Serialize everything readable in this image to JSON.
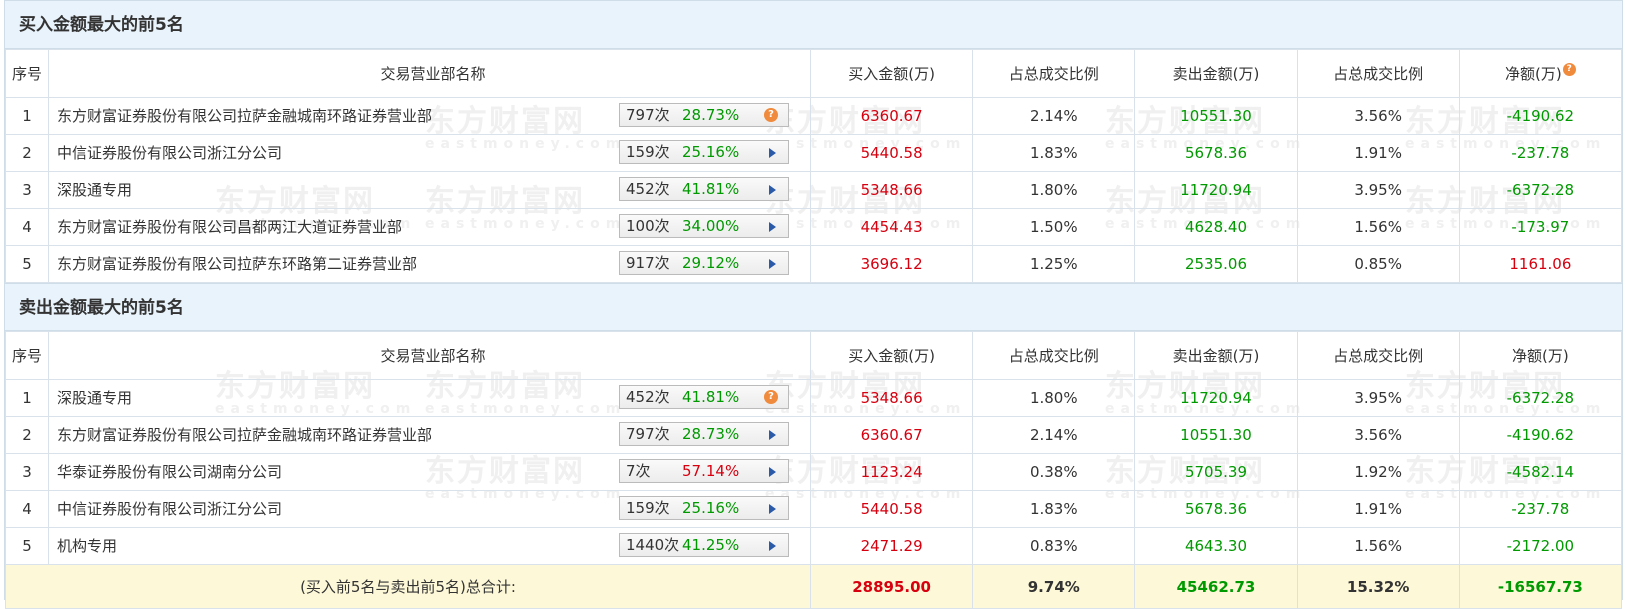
{
  "buy_section": {
    "title": "买入金额最大的前5名",
    "headers": [
      "序号",
      "交易营业部名称",
      "买入金额(万)",
      "占总成交比例",
      "卖出金额(万)",
      "占总成交比例",
      "净额(万)"
    ],
    "help_icon": "question-icon",
    "rows": [
      {
        "idx": "1",
        "name": "东方财富证券股份有限公司拉萨金融城南环路证券营业部",
        "count": "797次",
        "pct": "28.73%",
        "pct_color": "green",
        "icon": "question-icon",
        "buy": "6360.67",
        "buy_ratio": "2.14%",
        "sell": "10551.30",
        "sell_ratio": "3.56%",
        "net": "-4190.62",
        "net_color": "green"
      },
      {
        "idx": "2",
        "name": "中信证券股份有限公司浙江分公司",
        "count": "159次",
        "pct": "25.16%",
        "pct_color": "green",
        "icon": "arrow-right-icon",
        "buy": "5440.58",
        "buy_ratio": "1.83%",
        "sell": "5678.36",
        "sell_ratio": "1.91%",
        "net": "-237.78",
        "net_color": "green"
      },
      {
        "idx": "3",
        "name": "深股通专用",
        "count": "452次",
        "pct": "41.81%",
        "pct_color": "green",
        "icon": "arrow-right-icon",
        "buy": "5348.66",
        "buy_ratio": "1.80%",
        "sell": "11720.94",
        "sell_ratio": "3.95%",
        "net": "-6372.28",
        "net_color": "green"
      },
      {
        "idx": "4",
        "name": "东方财富证券股份有限公司昌都两江大道证券营业部",
        "count": "100次",
        "pct": "34.00%",
        "pct_color": "green",
        "icon": "arrow-right-icon",
        "buy": "4454.43",
        "buy_ratio": "1.50%",
        "sell": "4628.40",
        "sell_ratio": "1.56%",
        "net": "-173.97",
        "net_color": "green"
      },
      {
        "idx": "5",
        "name": "东方财富证券股份有限公司拉萨东环路第二证券营业部",
        "count": "917次",
        "pct": "29.12%",
        "pct_color": "green",
        "icon": "arrow-right-icon",
        "buy": "3696.12",
        "buy_ratio": "1.25%",
        "sell": "2535.06",
        "sell_ratio": "0.85%",
        "net": "1161.06",
        "net_color": "red"
      }
    ]
  },
  "sell_section": {
    "title": "卖出金额最大的前5名",
    "headers": [
      "序号",
      "交易营业部名称",
      "买入金额(万)",
      "占总成交比例",
      "卖出金额(万)",
      "占总成交比例",
      "净额(万)"
    ],
    "rows": [
      {
        "idx": "1",
        "name": "深股通专用",
        "count": "452次",
        "pct": "41.81%",
        "pct_color": "green",
        "icon": "question-icon",
        "buy": "5348.66",
        "buy_ratio": "1.80%",
        "sell": "11720.94",
        "sell_ratio": "3.95%",
        "net": "-6372.28",
        "net_color": "green"
      },
      {
        "idx": "2",
        "name": "东方财富证券股份有限公司拉萨金融城南环路证券营业部",
        "count": "797次",
        "pct": "28.73%",
        "pct_color": "green",
        "icon": "arrow-right-icon",
        "buy": "6360.67",
        "buy_ratio": "2.14%",
        "sell": "10551.30",
        "sell_ratio": "3.56%",
        "net": "-4190.62",
        "net_color": "green"
      },
      {
        "idx": "3",
        "name": "华泰证券股份有限公司湖南分公司",
        "count": "7次",
        "pct": "57.14%",
        "pct_color": "red",
        "icon": "arrow-right-icon",
        "buy": "1123.24",
        "buy_ratio": "0.38%",
        "sell": "5705.39",
        "sell_ratio": "1.92%",
        "net": "-4582.14",
        "net_color": "green"
      },
      {
        "idx": "4",
        "name": "中信证券股份有限公司浙江分公司",
        "count": "159次",
        "pct": "25.16%",
        "pct_color": "green",
        "icon": "arrow-right-icon",
        "buy": "5440.58",
        "buy_ratio": "1.83%",
        "sell": "5678.36",
        "sell_ratio": "1.91%",
        "net": "-237.78",
        "net_color": "green"
      },
      {
        "idx": "5",
        "name": "机构专用",
        "count": "1440次",
        "pct": "41.25%",
        "pct_color": "green",
        "icon": "arrow-right-icon",
        "buy": "2471.29",
        "buy_ratio": "0.83%",
        "sell": "4643.30",
        "sell_ratio": "1.56%",
        "net": "-2172.00",
        "net_color": "green"
      }
    ]
  },
  "total": {
    "label": "(买入前5名与卖出前5名)总合计:",
    "buy": "28895.00",
    "buy_ratio": "9.74%",
    "sell": "45462.73",
    "sell_ratio": "15.32%",
    "net": "-16567.73"
  },
  "watermark": {
    "cn": "东方财富网",
    "en": "eastmoney.com"
  },
  "colors": {
    "red": "#d6000f",
    "green": "#009900",
    "header_bg": "#e9f3fb",
    "total_bg": "#fdf8d8",
    "border": "#d9e2ea"
  }
}
